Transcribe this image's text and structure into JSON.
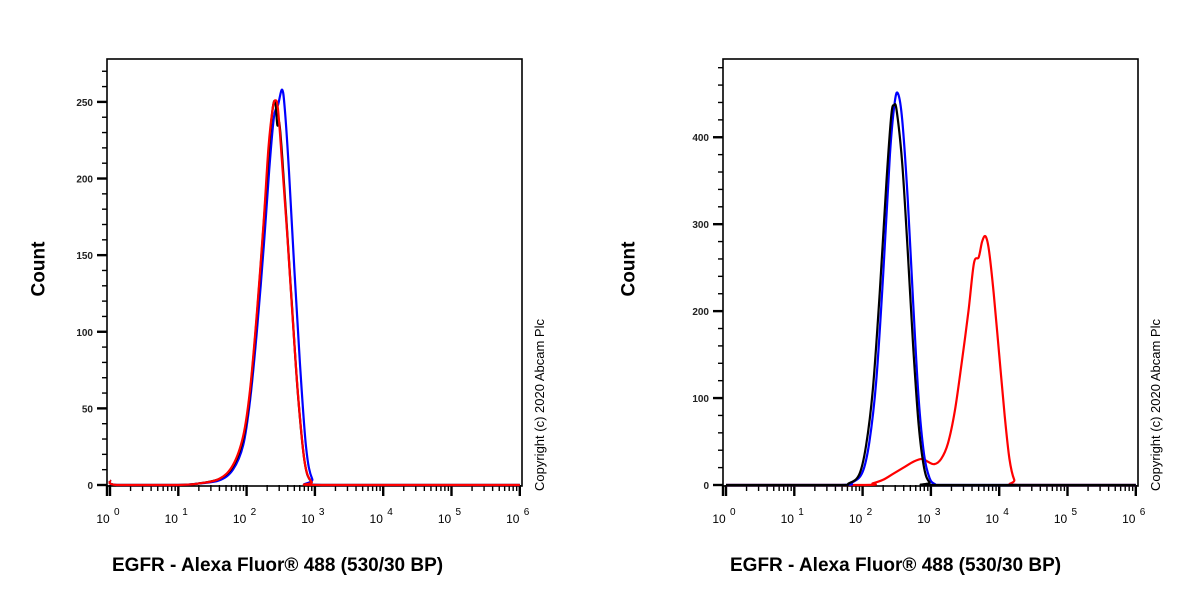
{
  "chart_data": [
    {
      "type": "line",
      "title": "",
      "xlabel": "EGFR - Alexa Fluor® 488 (530/30 BP)",
      "ylabel": "Count",
      "xscale": "log",
      "xlim": [
        1,
        1000000
      ],
      "ylim": [
        0,
        278
      ],
      "yticks": [
        0,
        50,
        100,
        150,
        200,
        250
      ],
      "xticks": [
        "10^0",
        "10^1",
        "10^2",
        "10^3",
        "10^4",
        "10^5",
        "10^6"
      ],
      "grid": false,
      "legend": null,
      "annotation": "Copyright (c) 2020 Abcam Plc",
      "series": [
        {
          "name": "black",
          "color": "#000000",
          "points": [
            [
              0.0,
              3
            ],
            [
              0.1,
              0
            ],
            [
              1.0,
              0
            ],
            [
              1.3,
              1
            ],
            [
              1.6,
              4
            ],
            [
              1.8,
              12
            ],
            [
              1.95,
              30
            ],
            [
              2.05,
              60
            ],
            [
              2.15,
              110
            ],
            [
              2.25,
              170
            ],
            [
              2.32,
              215
            ],
            [
              2.38,
              245
            ],
            [
              2.42,
              250
            ],
            [
              2.45,
              235
            ],
            [
              2.48,
              236
            ],
            [
              2.52,
              215
            ],
            [
              2.58,
              175
            ],
            [
              2.66,
              120
            ],
            [
              2.75,
              60
            ],
            [
              2.85,
              15
            ],
            [
              2.95,
              2
            ],
            [
              3.1,
              0
            ],
            [
              6.0,
              0
            ]
          ]
        },
        {
          "name": "blue",
          "color": "#0000ff",
          "points": [
            [
              0.0,
              3
            ],
            [
              0.1,
              0
            ],
            [
              1.0,
              0
            ],
            [
              1.3,
              1
            ],
            [
              1.6,
              3
            ],
            [
              1.8,
              10
            ],
            [
              1.95,
              26
            ],
            [
              2.05,
              55
            ],
            [
              2.15,
              100
            ],
            [
              2.25,
              155
            ],
            [
              2.33,
              205
            ],
            [
              2.4,
              240
            ],
            [
              2.46,
              248
            ],
            [
              2.52,
              258
            ],
            [
              2.56,
              245
            ],
            [
              2.62,
              205
            ],
            [
              2.7,
              140
            ],
            [
              2.78,
              80
            ],
            [
              2.87,
              25
            ],
            [
              2.96,
              4
            ],
            [
              3.1,
              0
            ],
            [
              6.0,
              0
            ]
          ]
        },
        {
          "name": "red",
          "color": "#ff0000",
          "points": [
            [
              0.0,
              3
            ],
            [
              0.1,
              0
            ],
            [
              1.0,
              0
            ],
            [
              1.3,
              1
            ],
            [
              1.6,
              4
            ],
            [
              1.8,
              13
            ],
            [
              1.95,
              32
            ],
            [
              2.05,
              62
            ],
            [
              2.15,
              112
            ],
            [
              2.25,
              172
            ],
            [
              2.32,
              220
            ],
            [
              2.38,
              245
            ],
            [
              2.42,
              251
            ],
            [
              2.46,
              245
            ],
            [
              2.52,
              210
            ],
            [
              2.6,
              160
            ],
            [
              2.68,
              105
            ],
            [
              2.76,
              55
            ],
            [
              2.85,
              15
            ],
            [
              2.95,
              2
            ],
            [
              3.1,
              0
            ],
            [
              6.0,
              0
            ]
          ]
        }
      ]
    },
    {
      "type": "line",
      "title": "",
      "xlabel": "EGFR - Alexa Fluor® 488 (530/30 BP)",
      "ylabel": "Count",
      "xscale": "log",
      "xlim": [
        1,
        1000000
      ],
      "ylim": [
        0,
        490
      ],
      "yticks": [
        0,
        100,
        200,
        300,
        400
      ],
      "xticks": [
        "10^0",
        "10^1",
        "10^2",
        "10^3",
        "10^4",
        "10^5",
        "10^6"
      ],
      "grid": false,
      "legend": null,
      "annotation": "Copyright (c) 2020 Abcam Plc",
      "series": [
        {
          "name": "black",
          "color": "#000000",
          "points": [
            [
              0.0,
              0
            ],
            [
              1.6,
              0
            ],
            [
              1.8,
              2
            ],
            [
              1.95,
              12
            ],
            [
              2.05,
              45
            ],
            [
              2.15,
              110
            ],
            [
              2.25,
              220
            ],
            [
              2.35,
              350
            ],
            [
              2.42,
              425
            ],
            [
              2.46,
              437
            ],
            [
              2.5,
              430
            ],
            [
              2.58,
              370
            ],
            [
              2.66,
              270
            ],
            [
              2.74,
              160
            ],
            [
              2.82,
              70
            ],
            [
              2.9,
              20
            ],
            [
              2.98,
              3
            ],
            [
              3.1,
              0
            ],
            [
              6.0,
              0
            ]
          ]
        },
        {
          "name": "blue",
          "color": "#0000ff",
          "points": [
            [
              0.0,
              0
            ],
            [
              1.65,
              0
            ],
            [
              1.85,
              3
            ],
            [
              2.0,
              15
            ],
            [
              2.1,
              50
            ],
            [
              2.2,
              120
            ],
            [
              2.3,
              240
            ],
            [
              2.4,
              380
            ],
            [
              2.47,
              440
            ],
            [
              2.52,
              450
            ],
            [
              2.58,
              420
            ],
            [
              2.66,
              330
            ],
            [
              2.74,
              210
            ],
            [
              2.82,
              100
            ],
            [
              2.9,
              35
            ],
            [
              2.98,
              8
            ],
            [
              3.06,
              1
            ],
            [
              3.15,
              0
            ],
            [
              6.0,
              0
            ]
          ]
        },
        {
          "name": "red",
          "color": "#ff0000",
          "points": [
            [
              0.0,
              0
            ],
            [
              2.0,
              0
            ],
            [
              2.15,
              2
            ],
            [
              2.3,
              6
            ],
            [
              2.45,
              13
            ],
            [
              2.6,
              20
            ],
            [
              2.75,
              27
            ],
            [
              2.87,
              30
            ],
            [
              2.95,
              27
            ],
            [
              3.05,
              24
            ],
            [
              3.15,
              30
            ],
            [
              3.25,
              48
            ],
            [
              3.35,
              85
            ],
            [
              3.45,
              140
            ],
            [
              3.55,
              200
            ],
            [
              3.63,
              255
            ],
            [
              3.7,
              262
            ],
            [
              3.75,
              280
            ],
            [
              3.8,
              286
            ],
            [
              3.85,
              270
            ],
            [
              3.92,
              220
            ],
            [
              4.0,
              150
            ],
            [
              4.08,
              80
            ],
            [
              4.15,
              30
            ],
            [
              4.22,
              6
            ],
            [
              4.3,
              0
            ],
            [
              6.0,
              0
            ]
          ]
        }
      ]
    }
  ],
  "panels": [
    {
      "ylabel": "Count",
      "xlabel": "EGFR - Alexa Fluor® 488 (530/30 BP)",
      "copyright": "Copyright (c) 2020 Abcam Plc"
    },
    {
      "ylabel": "Count",
      "xlabel": "EGFR - Alexa Fluor® 488 (530/30 BP)",
      "copyright": "Copyright (c) 2020 Abcam Plc"
    }
  ]
}
